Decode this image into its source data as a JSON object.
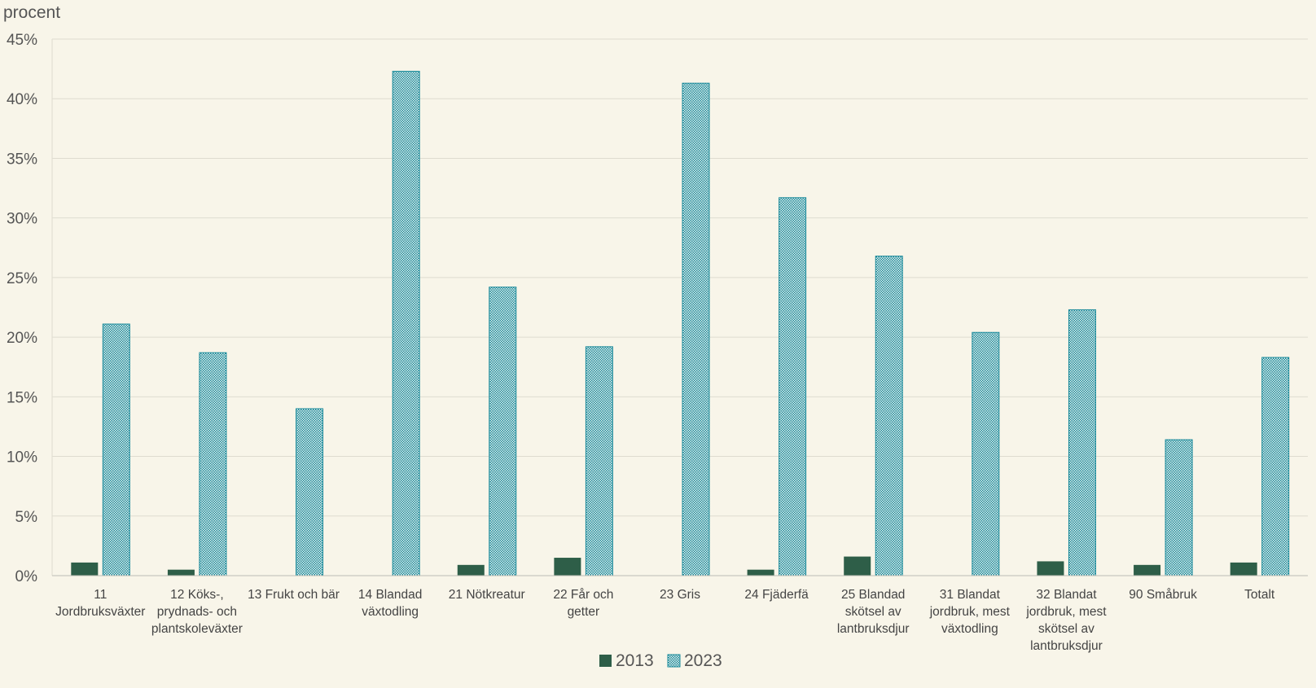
{
  "chart_data": {
    "type": "bar",
    "ylabel": "procent",
    "ylim": [
      0,
      45
    ],
    "yticks": [
      "0%",
      "5%",
      "10%",
      "15%",
      "20%",
      "25%",
      "30%",
      "35%",
      "40%",
      "45%"
    ],
    "grid": true,
    "legend_position": "bottom",
    "categories": [
      "11 Jordbruksväxter",
      "12 Köks-, prydnads- och plantskoleväxter",
      "13 Frukt och bär",
      "14 Blandad växtodling",
      "21 Nötkreatur",
      "22 Får och getter",
      "23 Gris",
      "24 Fjäderfä",
      "25 Blandad skötsel av lantbruksdjur",
      "31 Blandat jordbruk, mest växtodling",
      "32 Blandat jordbruk, mest skötsel av lantbruksdjur",
      "90 Småbruk",
      "Totalt"
    ],
    "category_lines": [
      [
        "11",
        "Jordbruksväxter"
      ],
      [
        "12 Köks-,",
        "prydnads- och",
        "plantskoleväxter"
      ],
      [
        "13 Frukt och bär"
      ],
      [
        "14 Blandad",
        "växtodling"
      ],
      [
        "21 Nötkreatur"
      ],
      [
        "22 Får och",
        "getter"
      ],
      [
        "23 Gris"
      ],
      [
        "24 Fjäderfä"
      ],
      [
        "25 Blandad",
        "skötsel av",
        "lantbruksdjur"
      ],
      [
        "31 Blandat",
        "jordbruk, mest",
        "växtodling"
      ],
      [
        "32 Blandat",
        "jordbruk, mest",
        "skötsel av",
        "lantbruksdjur"
      ],
      [
        "90 Småbruk"
      ],
      [
        "Totalt"
      ]
    ],
    "series": [
      {
        "name": "2013",
        "color": "#2e5e48",
        "pattern": "solid",
        "values": [
          1.1,
          0.5,
          0,
          0,
          0.9,
          1.5,
          0,
          0.5,
          1.6,
          0,
          1.2,
          0.9,
          1.1
        ]
      },
      {
        "name": "2023",
        "color": "#1a8a9a",
        "pattern": "checkered",
        "values": [
          21.1,
          18.7,
          14.0,
          42.3,
          24.2,
          19.2,
          41.3,
          31.7,
          26.8,
          20.4,
          22.3,
          11.4,
          18.3
        ]
      }
    ]
  }
}
